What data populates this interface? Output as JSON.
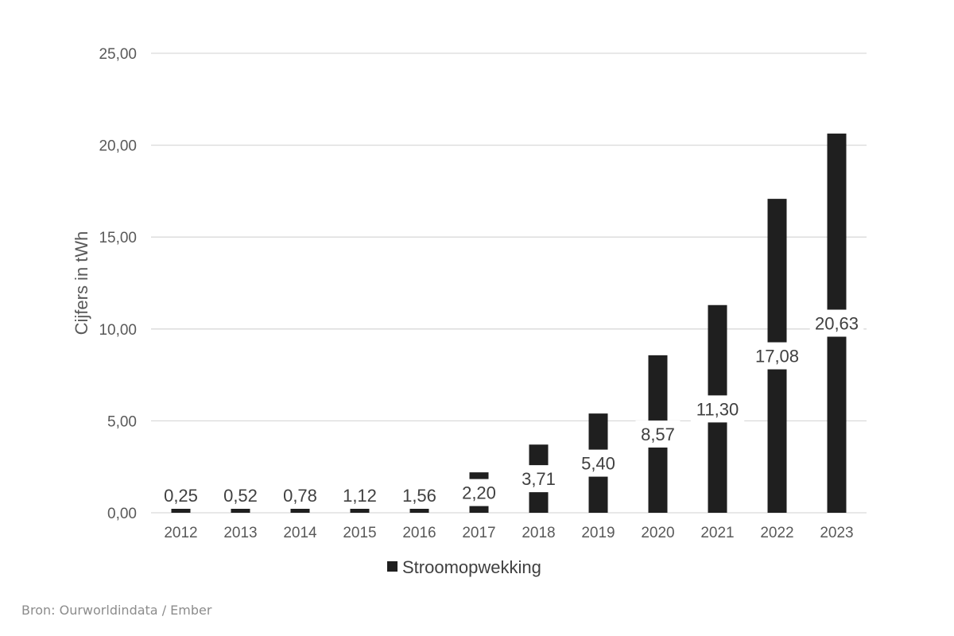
{
  "chart_data": {
    "type": "bar",
    "title": "",
    "ylabel": "Cijfers in tWh",
    "xlabel": "",
    "categories": [
      "2012",
      "2013",
      "2014",
      "2015",
      "2016",
      "2017",
      "2018",
      "2019",
      "2020",
      "2021",
      "2022",
      "2023"
    ],
    "series": [
      {
        "name": "Stroomopwekking",
        "values": [
          0.25,
          0.52,
          0.78,
          1.12,
          1.56,
          2.2,
          3.71,
          5.4,
          8.57,
          11.3,
          17.08,
          20.63
        ],
        "labels": [
          "0,25",
          "0,52",
          "0,78",
          "1,12",
          "1,56",
          "2,20",
          "3,71",
          "5,40",
          "8,57",
          "11,30",
          "17,08",
          "20,63"
        ],
        "color": "#1f1f1f"
      }
    ],
    "ylim": [
      0,
      25
    ],
    "yticks": [
      0,
      5,
      10,
      15,
      20,
      25
    ],
    "ytick_labels": [
      "0,00",
      "5,00",
      "10,00",
      "15,00",
      "20,00",
      "25,00"
    ],
    "grid": true,
    "legend": "bottom-center"
  },
  "source": "Bron: Ourworldindata / Ember"
}
